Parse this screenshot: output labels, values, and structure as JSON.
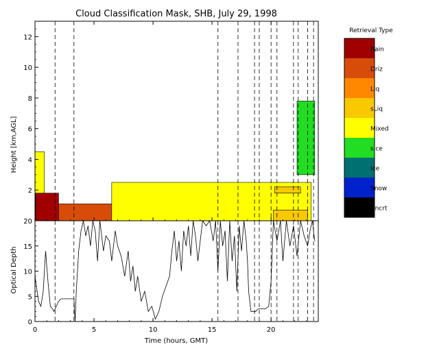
{
  "chart_data": [
    {
      "type": "heatmap",
      "title": "Cloud Classification Mask, SHB, July 29, 1998",
      "xlabel": "",
      "ylabel": "Height [km,AGL]",
      "xlim": [
        0,
        24
      ],
      "ylim": [
        0,
        13
      ],
      "x_ticks": [
        "0",
        "5",
        "10",
        "15",
        "20"
      ],
      "y_ticks": [
        "2",
        "4",
        "6",
        "8",
        "10",
        "12"
      ],
      "grid": false,
      "legend_position": "right",
      "legend_title": "Retrieval Type",
      "classes": [
        {
          "name": "Rain",
          "color": "#a00000"
        },
        {
          "name": "Driz",
          "color": "#d84c0a"
        },
        {
          "name": "Liq",
          "color": "#ff8800"
        },
        {
          "name": "sLiq",
          "color": "#f8c800"
        },
        {
          "name": "Mixed",
          "color": "#ffff00"
        },
        {
          "name": "sIce",
          "color": "#22dd22"
        },
        {
          "name": "Ice",
          "color": "#007070"
        },
        {
          "name": "Snow",
          "color": "#0022cc"
        },
        {
          "name": "Uncrt",
          "color": "#000000"
        }
      ],
      "dashed_lines_x": [
        1.7,
        3.3,
        15.5,
        17.2,
        18.6,
        19.0,
        20.0,
        20.5,
        21.9,
        22.3,
        23.1,
        23.6
      ],
      "regions": [
        {
          "class": "Rain",
          "x": [
            0.05,
            2.0
          ],
          "y": [
            0,
            1.8
          ]
        },
        {
          "class": "Driz",
          "x": [
            2.0,
            6.5
          ],
          "y": [
            0,
            1.1
          ]
        },
        {
          "class": "Mixed",
          "x": [
            0.0,
            0.8
          ],
          "y": [
            1.8,
            4.5
          ]
        },
        {
          "class": "Mixed",
          "x": [
            6.5,
            23.4
          ],
          "y": [
            0,
            2.5
          ]
        },
        {
          "class": "sLiq",
          "x": [
            20.2,
            23.1
          ],
          "y": [
            0,
            0.7
          ]
        },
        {
          "class": "sLiq",
          "x": [
            20.3,
            22.5
          ],
          "y": [
            1.8,
            2.2
          ]
        },
        {
          "class": "sIce",
          "x": [
            22.2,
            23.7
          ],
          "y": [
            3.0,
            7.8
          ]
        }
      ]
    },
    {
      "type": "line",
      "title": "",
      "xlabel": "Time (hours, GMT)",
      "ylabel": "Optical Depth",
      "xlim": [
        0,
        24
      ],
      "ylim": [
        0,
        20
      ],
      "x_ticks": [
        "0",
        "5",
        "10",
        "15",
        "20"
      ],
      "y_ticks": [
        "0",
        "5",
        "10",
        "15",
        "20"
      ],
      "grid": false,
      "series": [
        {
          "x": [
            0.0,
            0.3,
            0.5,
            0.7,
            0.9,
            1.1,
            1.3,
            1.5,
            1.6,
            1.8,
            2.0,
            2.2,
            2.3,
            2.5,
            3.3,
            3.4,
            3.5,
            3.7,
            3.9,
            4.1,
            4.3,
            4.5,
            4.7,
            4.9,
            5.1,
            5.3,
            5.5,
            5.8,
            6.0,
            6.3,
            6.5,
            6.8,
            7.0,
            7.3,
            7.6,
            7.9,
            8.1,
            8.3,
            8.5,
            8.7,
            9.0,
            9.3,
            9.6,
            9.9,
            10.2,
            10.5,
            10.8,
            11.1,
            11.4,
            11.6,
            11.8,
            12.0,
            12.2,
            12.4,
            12.6,
            12.8,
            13.0,
            13.2,
            13.4,
            13.6,
            13.8,
            14.0,
            14.2,
            14.5,
            14.8,
            15.1,
            15.3,
            15.5,
            15.7,
            15.9,
            16.1,
            16.3,
            16.5,
            16.7,
            16.9,
            17.1,
            17.3,
            17.5,
            17.7,
            17.9,
            18.0,
            18.1,
            18.3,
            18.5,
            18.7,
            18.9,
            19.1,
            19.3,
            19.5,
            19.8,
            20.0,
            20.2,
            20.5,
            20.8,
            21.0,
            21.3,
            21.6,
            21.9,
            22.2,
            22.5,
            22.8,
            23.1,
            23.3,
            23.5,
            23.7
          ],
          "y": [
            9,
            4,
            3,
            6,
            14,
            8,
            3,
            2.5,
            2,
            3,
            4,
            4.5,
            4.5,
            4.5,
            4.5,
            0,
            6,
            14,
            18,
            20,
            17,
            19,
            15,
            20,
            18,
            12,
            20,
            14,
            17,
            16,
            12,
            18,
            15,
            13,
            9,
            14,
            8,
            11,
            6,
            9,
            4,
            6,
            2,
            3,
            0.5,
            2,
            5,
            7,
            9,
            14,
            18,
            12,
            16,
            10,
            18,
            15,
            19,
            13,
            20,
            17,
            12,
            16,
            20,
            19,
            20,
            16,
            20,
            10,
            20,
            15,
            18,
            8,
            20,
            12,
            17,
            6,
            19,
            14,
            20,
            16,
            12,
            6,
            2,
            2,
            2,
            2.5,
            2.5,
            2.5,
            2.5,
            3,
            8,
            20,
            16,
            20,
            12,
            20,
            15,
            19,
            13,
            20,
            17,
            15,
            18,
            20,
            16
          ]
        }
      ]
    }
  ]
}
